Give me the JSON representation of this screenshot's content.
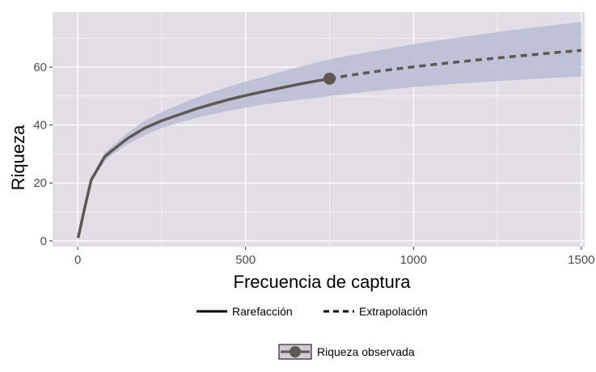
{
  "chart_data": {
    "type": "line",
    "xlabel": "Frecuencia de captura",
    "ylabel": "Riqueza",
    "xlim": [
      -75,
      1510
    ],
    "ylim": [
      -2,
      79
    ],
    "x_ticks": [
      0,
      500,
      1000,
      1500
    ],
    "y_ticks": [
      0,
      20,
      40,
      60
    ],
    "x_tick_labels": [
      "0",
      "500",
      "1000",
      "1500"
    ],
    "y_tick_labels": [
      "0",
      "20",
      "40",
      "60"
    ],
    "grid": true,
    "legend_position": "bottom",
    "colors": {
      "panel": "#e3dee6",
      "grid": "#ffffff",
      "ribbon": "#b9bcd6",
      "line": "#5f5752",
      "legend_key": "#000000"
    },
    "series": [
      {
        "name": "Rarefacción",
        "line_style": "solid",
        "x": [
          1,
          20,
          40,
          60,
          80,
          100,
          150,
          200,
          250,
          300,
          350,
          400,
          450,
          500,
          550,
          600,
          650,
          700,
          750
        ],
        "y": [
          1,
          11,
          21,
          25,
          29,
          31,
          35.5,
          39,
          41.5,
          43.5,
          45.5,
          47.2,
          48.8,
          50.2,
          51.5,
          52.7,
          53.9,
          55,
          56
        ],
        "lower": [
          1,
          10.5,
          20,
          24,
          27.5,
          29.5,
          33.5,
          36.5,
          39,
          40.8,
          42.3,
          43.7,
          44.9,
          46,
          47,
          47.9,
          48.6,
          49.3,
          50
        ],
        "upper": [
          1,
          11.5,
          22,
          26,
          30.5,
          32.5,
          37.5,
          41.5,
          44.5,
          47,
          49.3,
          51.3,
          53.2,
          55,
          56.6,
          58.2,
          59.8,
          61.3,
          62.7
        ]
      },
      {
        "name": "Extrapolación",
        "line_style": "dashed",
        "x": [
          750,
          800,
          900,
          1000,
          1100,
          1200,
          1300,
          1400,
          1500
        ],
        "y": [
          56,
          57,
          58.7,
          60.1,
          61.4,
          62.6,
          63.7,
          64.8,
          65.8
        ],
        "lower": [
          50,
          50.7,
          52,
          53.1,
          54,
          54.8,
          55.5,
          56.2,
          56.8
        ],
        "upper": [
          62.7,
          63.8,
          65.9,
          67.9,
          69.7,
          71.3,
          72.9,
          74.3,
          75.6
        ]
      }
    ],
    "observed_point": {
      "name": "Riqueza observada",
      "x": 750,
      "y": 56
    }
  }
}
